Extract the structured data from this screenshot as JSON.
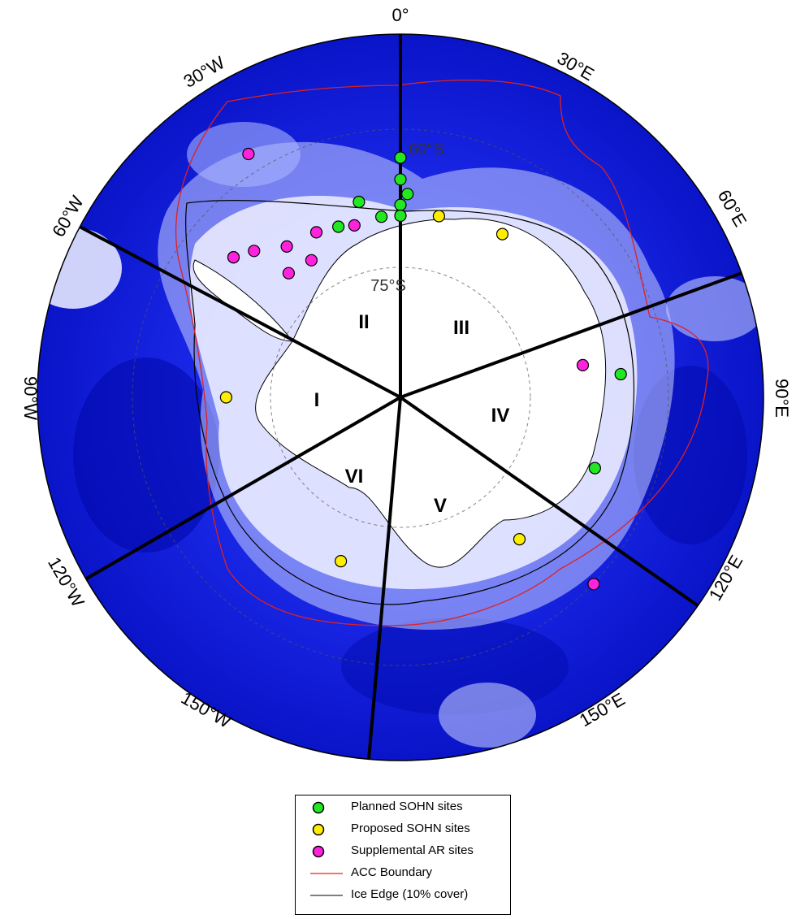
{
  "map": {
    "center_label": "",
    "longitude_labels": [
      "0°",
      "30°E",
      "60°E",
      "90°E",
      "120°E",
      "150°E",
      "150°W",
      "120°W",
      "90°W",
      "60°W",
      "30°W"
    ],
    "latitude_labels": [
      "60°S",
      "75°S"
    ],
    "sector_labels": [
      "I",
      "II",
      "III",
      "IV",
      "V",
      "VI"
    ],
    "colors": {
      "ocean": "#0a16d8",
      "ocean_deep": "#0008a8",
      "sea_ice": "#e8ecff",
      "land": "#ffffff",
      "acc_boundary": "#e02020",
      "ice_edge": "#000000",
      "planned": "#22e822",
      "proposed": "#ffee00",
      "supplemental": "#ff22dd"
    },
    "sites": {
      "planned": [
        {
          "lon": 0,
          "lat": -57.0
        },
        {
          "lon": 0,
          "lat": -60.0
        },
        {
          "lon": 2,
          "lat": -62.0
        },
        {
          "lon": 0,
          "lat": -63.5
        },
        {
          "lon": 0,
          "lat": -65.0
        },
        {
          "lon": -6,
          "lat": -65.0
        },
        {
          "lon": -12,
          "lat": -62.5
        },
        {
          "lon": -20,
          "lat": -65.0
        },
        {
          "lon": -50,
          "lat": -60.0
        },
        {
          "lon": 84,
          "lat": -59.5
        },
        {
          "lon": 110,
          "lat": -61.5
        }
      ],
      "proposed": [
        {
          "lon": 12,
          "lat": -64.5
        },
        {
          "lon": 32,
          "lat": -63.5
        },
        {
          "lon": -90,
          "lat": -66.0
        },
        {
          "lon": -160,
          "lat": -66.0
        },
        {
          "lon": 140,
          "lat": -64.5
        }
      ],
      "supplemental": [
        {
          "lon": -32,
          "lat": -50.5
        },
        {
          "lon": -15,
          "lat": -65.5
        },
        {
          "lon": -27,
          "lat": -64.5
        },
        {
          "lon": -37,
          "lat": -64.0
        },
        {
          "lon": -45,
          "lat": -61.5
        },
        {
          "lon": -33,
          "lat": -67.5
        },
        {
          "lon": -42,
          "lat": -67.0
        },
        {
          "lon": -50,
          "lat": -60.0
        },
        {
          "lon": 80,
          "lat": -64.5
        },
        {
          "lon": 134,
          "lat": -53.0
        }
      ]
    }
  },
  "legend": {
    "items": [
      {
        "label": "Planned SOHN sites",
        "kind": "planned"
      },
      {
        "label": "Proposed SOHN sites",
        "kind": "proposed"
      },
      {
        "label": "Supplemental AR sites",
        "kind": "supplemental"
      },
      {
        "label": "ACC Boundary",
        "kind": "acc"
      },
      {
        "label": "Ice Edge (10% cover)",
        "kind": "ice"
      }
    ]
  }
}
